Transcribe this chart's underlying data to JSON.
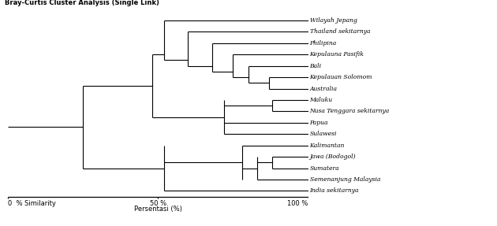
{
  "title": "Bray-Curtis Cluster Analysis (Single Link)",
  "xlabel": "Persentasi (%)",
  "axis_label_0": "0  % Similarity",
  "axis_label_50": "50 %",
  "axis_label_100": "100 %",
  "labels": [
    "Wilayah Jepang",
    "Thailand sekitarnya",
    "Philipina",
    "Kepulauna Pasifik",
    "Bali",
    "Kepulauan Solomom",
    "Australia",
    "Maluku",
    "Nusa Tenggara sekitarnya",
    "Papua",
    "Sulawesi",
    "Kalimantan",
    "Jawa (Bodogol)",
    "Sumatera",
    "Semenanjung Malaysia",
    "India sekitarnya"
  ],
  "fig_width": 6.3,
  "fig_height": 2.87,
  "dpi": 100,
  "line_color": "#000000",
  "line_width": 0.8,
  "bg_color": "#ffffff",
  "font_size_title": 6.0,
  "font_size_labels": 5.5,
  "font_size_axis": 6.0,
  "m_sol_aus": 87,
  "m_bali": 80,
  "m_kep_pas": 75,
  "m_phil": 68,
  "m_thai": 60,
  "m_wj": 52,
  "m_mal_nt": 88,
  "m_mid": 72,
  "m_jaw_sum": 88,
  "m_sem": 83,
  "m_kal": 78,
  "m_ind": 52,
  "m_up_mid": 48,
  "m_root": 25
}
